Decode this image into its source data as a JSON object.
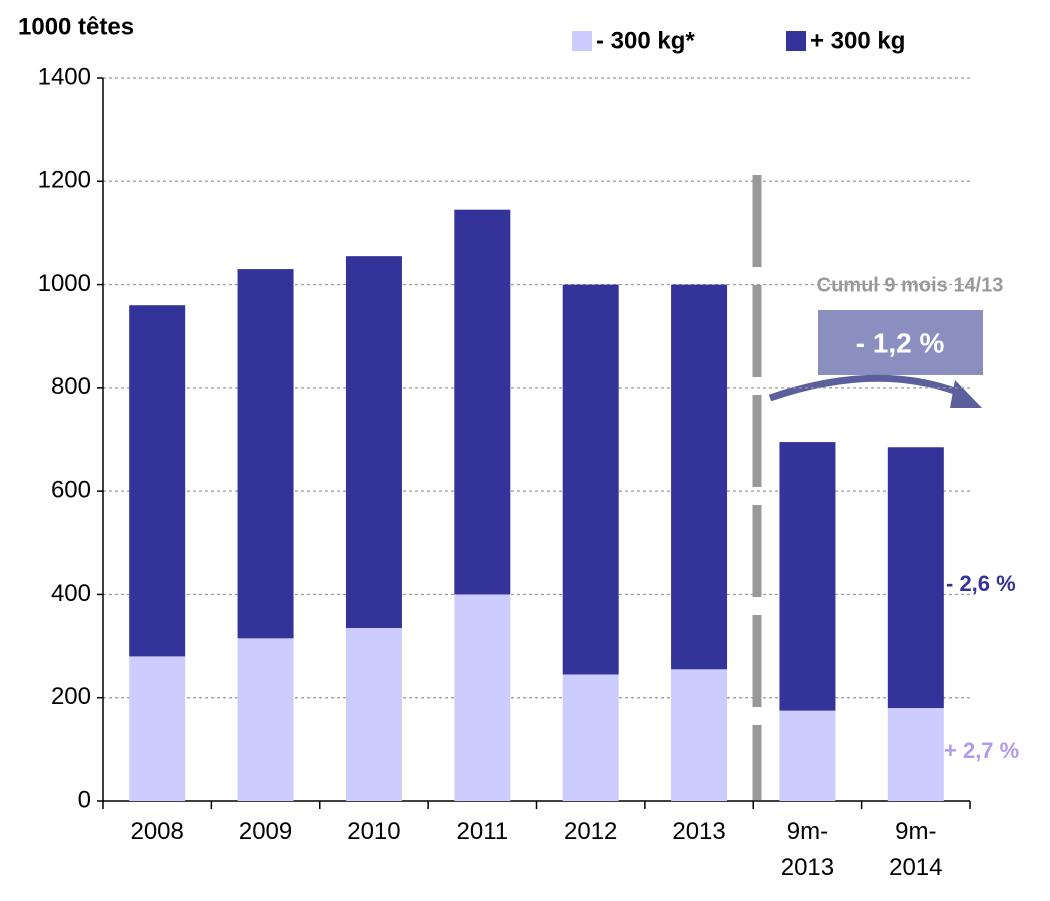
{
  "chart_data": {
    "type": "bar",
    "stacked": true,
    "y_axis_label": "1000 têtes",
    "categories": [
      "2008",
      "2009",
      "2010",
      "2011",
      "2012",
      "2013",
      "9m-2013",
      "9m-2014"
    ],
    "series": [
      {
        "name": "- 300 kg*",
        "color": "#ccccff",
        "values": [
          280,
          315,
          335,
          400,
          245,
          255,
          175,
          180
        ]
      },
      {
        "name": "+ 300 kg",
        "color": "#333399",
        "values": [
          680,
          715,
          720,
          745,
          755,
          745,
          520,
          505
        ]
      }
    ],
    "ylim": [
      0,
      1400
    ],
    "yticks": [
      0,
      200,
      400,
      600,
      800,
      1000,
      1200,
      1400
    ],
    "grid": true,
    "annotations": {
      "period": "Cumul 9 mois 14/13",
      "total_change": "- 1,2 %",
      "heavy_change": "- 2,6 %",
      "light_change": "+ 2,7 %"
    }
  }
}
